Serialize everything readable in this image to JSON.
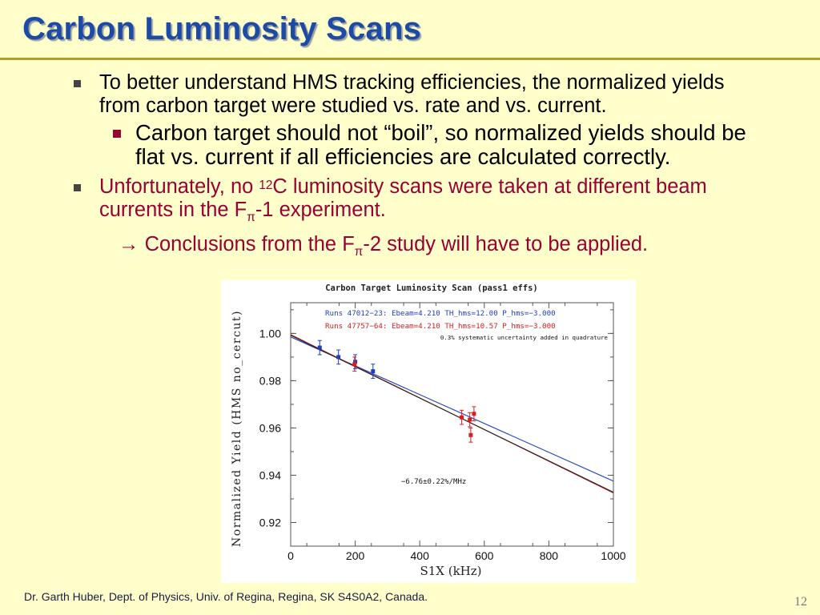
{
  "slide": {
    "title": "Carbon Luminosity Scans",
    "bullet1": "To better understand HMS tracking efficiencies, the normalized yields from carbon target were studied vs. rate and vs. current.",
    "bullet2": "Carbon target should not “boil”, so normalized yields should be flat vs. current if all efficiencies are calculated correctly.",
    "bullet3": {
      "pre": "Unfortunately, no ",
      "sup": "12",
      "post": "C luminosity scans were taken at different beam currents in the F",
      "sub": "π",
      "tail": "-1 experiment."
    },
    "bullet4": {
      "pre": "→ Conclusions from the F",
      "sub": "π",
      "tail": "-2 study will have to be applied."
    },
    "footer": "Dr. Garth Huber, Dept. of Physics, Univ. of Regina, Regina, SK S4S0A2, Canada.",
    "page_number": "12"
  },
  "chart_data": {
    "type": "scatter",
    "title": "Carbon Target Luminosity Scan (pass1 effs)",
    "xlabel": "S1X  (kHz)",
    "ylabel": "Normalized Yield (HMS no_cercut)",
    "xlim": [
      0,
      1000
    ],
    "ylim": [
      0.91,
      1.013
    ],
    "x_ticks": [
      0,
      200,
      400,
      600,
      800,
      1000
    ],
    "y_ticks": [
      0.92,
      0.94,
      0.96,
      0.98,
      1.0
    ],
    "x_tick_labels": [
      "0",
      "200",
      "400",
      "600",
      "800",
      "1000"
    ],
    "y_tick_labels": [
      "0.92",
      "0.94",
      "0.96",
      "0.98",
      "1.00"
    ],
    "legend": [
      {
        "text": "Runs  47012−23:  Ebeam=4.210    TH_hms=12.00    P_hms=−3.000",
        "color": "#1f3fbf"
      },
      {
        "text": "Runs  47757−64:  Ebeam=4.210    TH_hms=10.57    P_hms=−3.000",
        "color": "#d42020"
      }
    ],
    "note": "0.3% systematic uncertainty added in quadrature",
    "annotation": "−6.76±0.22%/MHz",
    "series": [
      {
        "color": "#1f3fbf",
        "points": [
          {
            "x": 90,
            "y": 0.994,
            "err": 0.003
          },
          {
            "x": 148,
            "y": 0.99,
            "err": 0.003
          },
          {
            "x": 200,
            "y": 0.988,
            "err": 0.003
          },
          {
            "x": 255,
            "y": 0.984,
            "err": 0.003
          }
        ]
      },
      {
        "color": "#d42020",
        "points": [
          {
            "x": 198,
            "y": 0.987,
            "err": 0.003
          },
          {
            "x": 530,
            "y": 0.9645,
            "err": 0.003
          },
          {
            "x": 555,
            "y": 0.9635,
            "err": 0.003
          },
          {
            "x": 558,
            "y": 0.957,
            "err": 0.003
          },
          {
            "x": 568,
            "y": 0.966,
            "err": 0.003
          }
        ]
      }
    ],
    "fits": [
      {
        "color": "#1f3fbf",
        "x": [
          0,
          1000
        ],
        "y": [
          0.9985,
          0.9375
        ]
      },
      {
        "color": "#d42020",
        "x": [
          0,
          1000
        ],
        "y": [
          0.9995,
          0.9325
        ]
      },
      {
        "color": "#222222",
        "x": [
          0,
          1000
        ],
        "y": [
          0.9992,
          0.9328
        ]
      }
    ]
  }
}
